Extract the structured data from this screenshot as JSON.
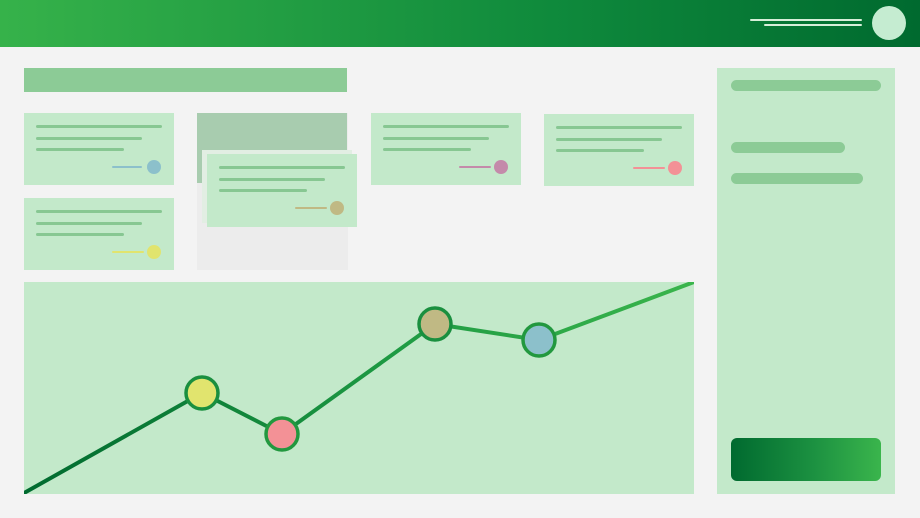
{
  "header": {
    "avatar_color": "#c5ecd1"
  },
  "colors": {
    "accent": "#1a8f3f",
    "card_bg": "#c3e9ca",
    "placeholder_line": "#87c792"
  },
  "cards": [
    {
      "id": "card-1",
      "accent": "#8cc0cb"
    },
    {
      "id": "card-3",
      "accent": "#c48aaa"
    },
    {
      "id": "card-4",
      "accent": "#f39196"
    },
    {
      "id": "card-5",
      "accent": "#e1e46e"
    },
    {
      "id": "card-dragging",
      "accent": "#c0b984"
    }
  ],
  "chart": {
    "line_color": "#1a8f3f",
    "markers": [
      {
        "color": "#e1e46e"
      },
      {
        "color": "#f39196"
      },
      {
        "color": "#c0b984"
      },
      {
        "color": "#8cc0cb"
      }
    ]
  }
}
